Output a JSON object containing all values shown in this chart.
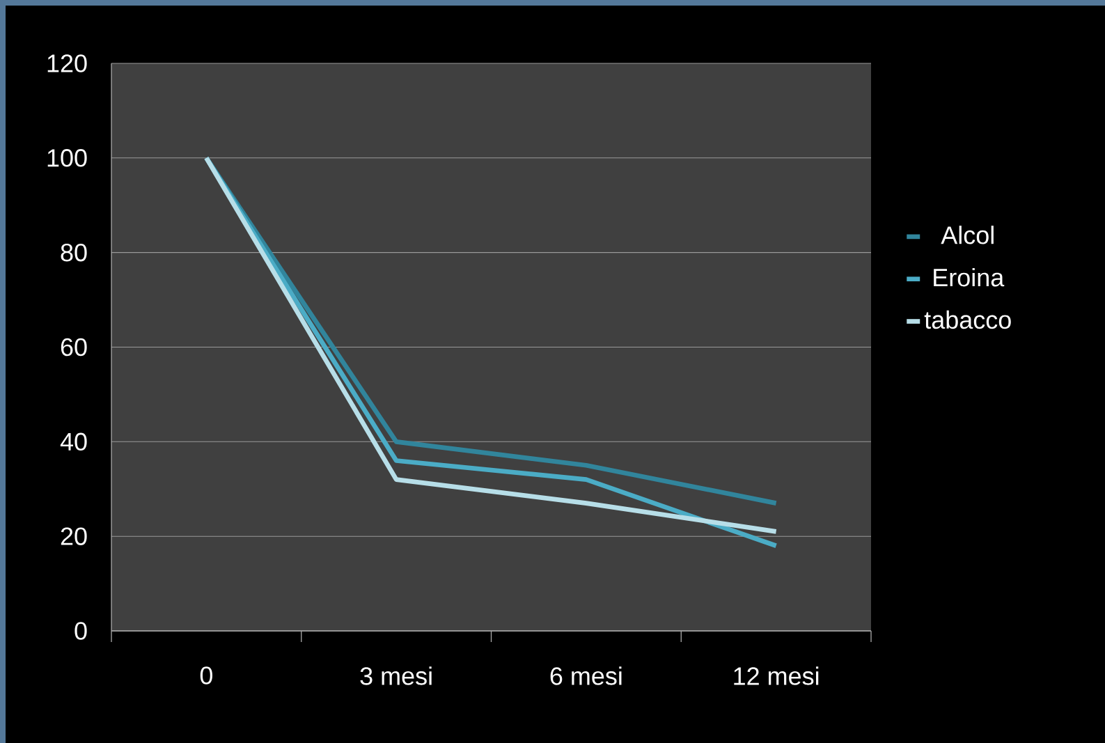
{
  "chart_data": {
    "type": "line",
    "categories": [
      "0",
      "3 mesi",
      "6 mesi",
      "12 mesi"
    ],
    "series": [
      {
        "name": "Alcol",
        "color": "#31859c",
        "values": [
          100,
          40,
          35,
          27
        ]
      },
      {
        "name": "Eroina",
        "color": "#4bacc6",
        "values": [
          100,
          36,
          32,
          18
        ]
      },
      {
        "name": "tabacco",
        "color": "#b7dee8",
        "values": [
          100,
          32,
          27,
          21
        ]
      }
    ],
    "ylim": [
      0,
      120
    ],
    "yticks": [
      0,
      20,
      40,
      60,
      80,
      100,
      120
    ],
    "grid": "y",
    "legend": "right",
    "marker": "none",
    "line_style": "solid"
  }
}
